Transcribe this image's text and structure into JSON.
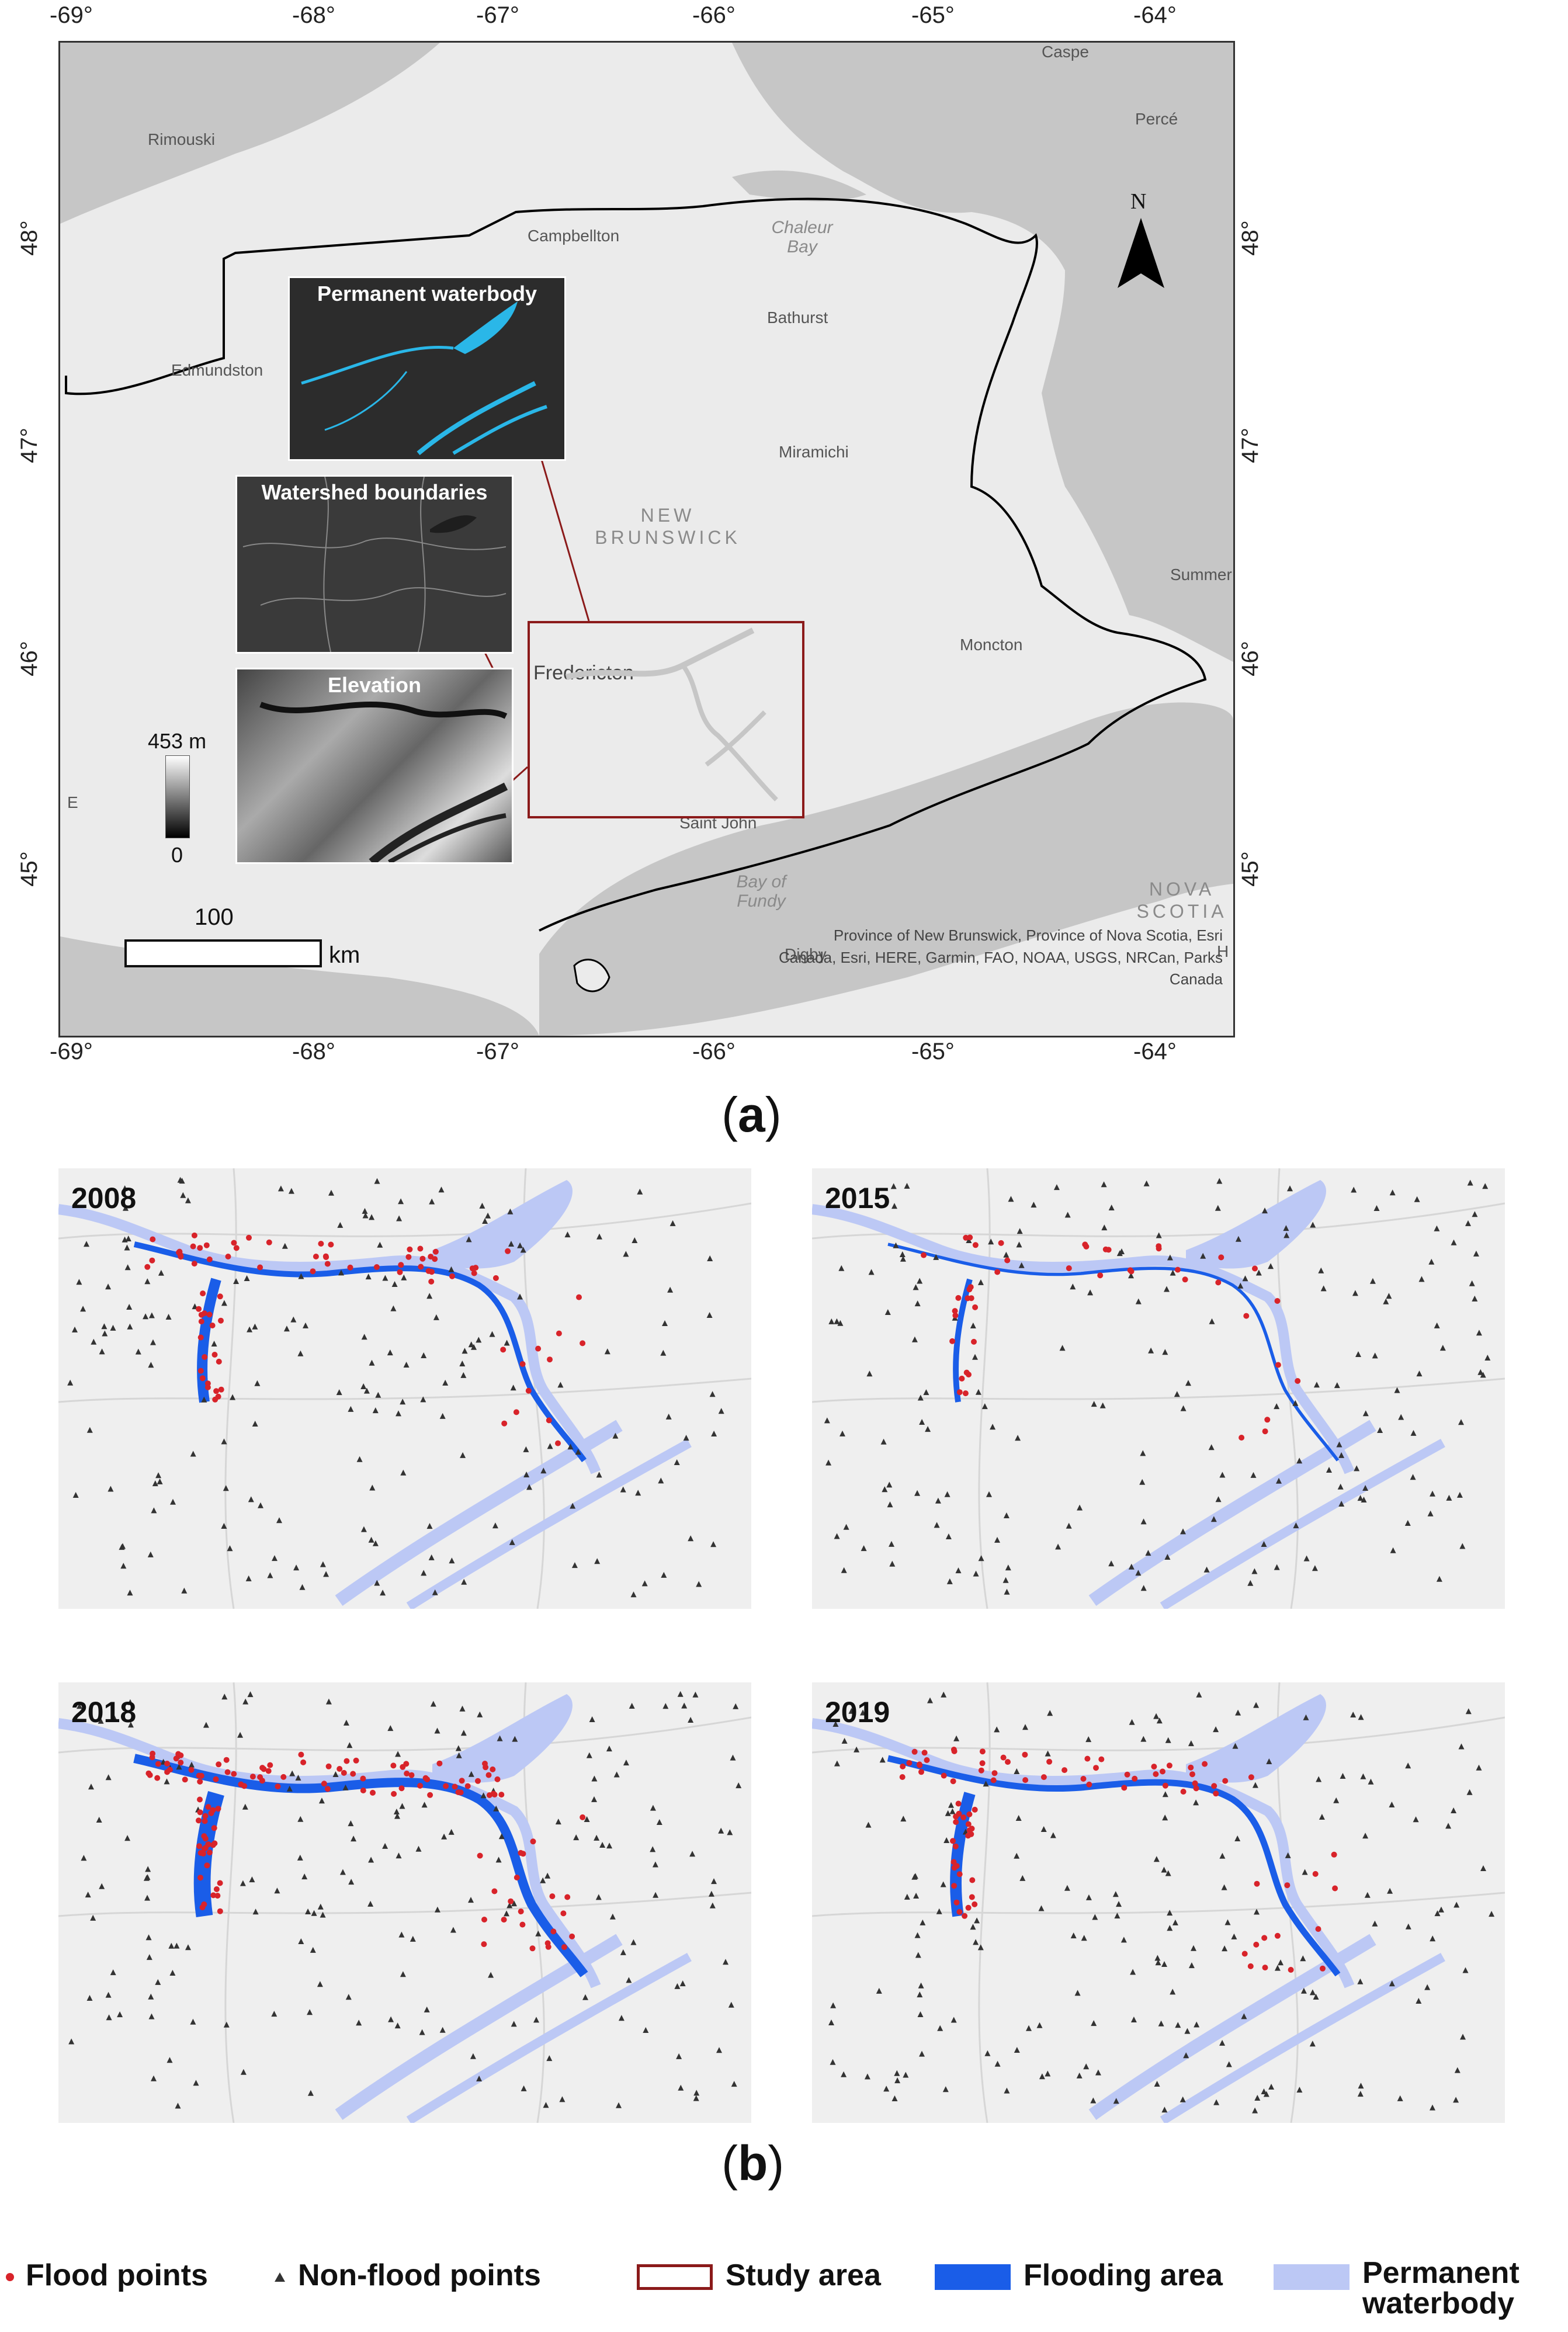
{
  "panel_a": {
    "label": "a",
    "lon_ticks": [
      "-69°",
      "-68°",
      "-67°",
      "-66°",
      "-65°",
      "-64°"
    ],
    "lat_ticks": [
      "48°",
      "47°",
      "46°",
      "45°"
    ],
    "places": [
      "Rimouski",
      "Caspe",
      "Percé",
      "Campbellton",
      "Bathurst",
      "Edmundston",
      "Miramichi",
      "Moncton",
      "Fredericton",
      "Saint John",
      "Digby",
      "Summer",
      "E",
      "H"
    ],
    "water_labels": {
      "chaleur": "Chaleur\nBay",
      "fundy": "Bay of\nFundy"
    },
    "region_labels": {
      "nb": "NEW\nBRUNSWICK",
      "ns": "NOVA\nSCOTIA"
    },
    "north_label": "N",
    "insets": {
      "waterbody": "Permanent waterbody",
      "watershed": "Watershed boundaries",
      "elevation": "Elevation"
    },
    "elevation_max": "453 m",
    "elevation_min": "0",
    "scale_value": "100",
    "scale_unit": "km",
    "attribution": "Province of New Brunswick, Province of Nova Scotia, Esri\nCanada, Esri, HERE, Garmin, FAO, NOAA, USGS, NRCan, Parks\nCanada",
    "colors": {
      "land": "#ebebeb",
      "water": "#c6c6c6",
      "study_area": "#8b1a1a"
    }
  },
  "panel_b": {
    "label": "b",
    "years": [
      "2008",
      "2015",
      "2018",
      "2019"
    ],
    "colors": {
      "flood_points": "#d8232a",
      "non_flood": "#333333",
      "flooding_area": "#1a5de8",
      "permanent_waterbody": "#bcc8f5"
    }
  },
  "legend": {
    "flood_points": "Flood points",
    "non_flood_points": "Non-flood points",
    "study_area": "Study area",
    "flooding_area": "Flooding area",
    "permanent_waterbody": "Permanent\nwaterbody"
  }
}
